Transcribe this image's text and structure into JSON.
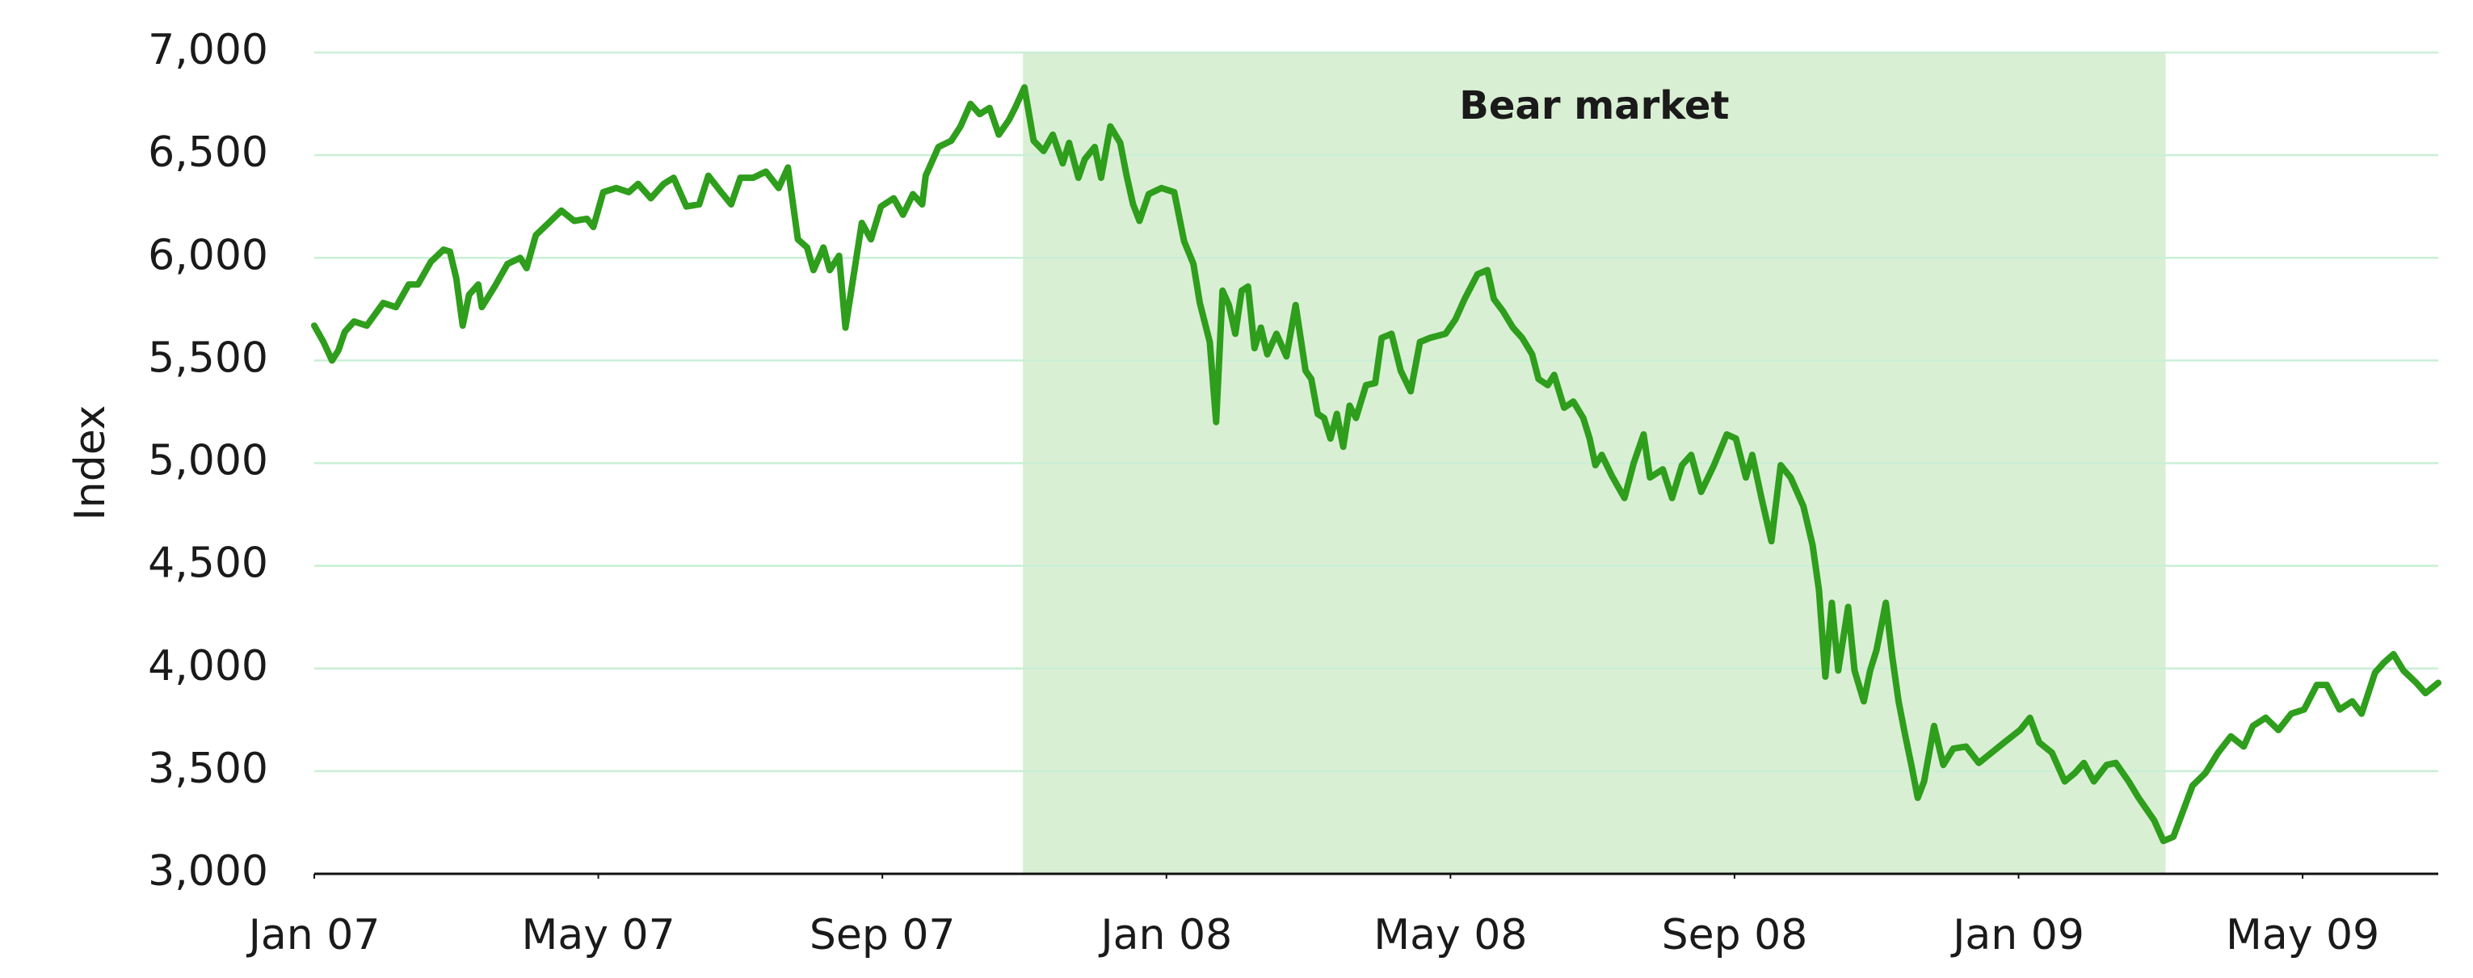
{
  "chart_data": {
    "type": "line",
    "y_label": "Index",
    "xlim": [
      0,
      29.91
    ],
    "xticks": [
      {
        "value": 0,
        "label": "Jan 07"
      },
      {
        "value": 4,
        "label": "May 07"
      },
      {
        "value": 8,
        "label": "Sep 07"
      },
      {
        "value": 12,
        "label": "Jan 08"
      },
      {
        "value": 16,
        "label": "May 08"
      },
      {
        "value": 20,
        "label": "Sep 08"
      },
      {
        "value": 24,
        "label": "Jan 09"
      },
      {
        "value": 28,
        "label": "May 09"
      }
    ],
    "ylim": [
      3000,
      7000
    ],
    "yticks": [
      {
        "value": 3000,
        "label": "3,000"
      },
      {
        "value": 3500,
        "label": "3,500"
      },
      {
        "value": 4000,
        "label": "4,000"
      },
      {
        "value": 4500,
        "label": "4,500"
      },
      {
        "value": 5000,
        "label": "5,000"
      },
      {
        "value": 5500,
        "label": "5,500"
      },
      {
        "value": 6000,
        "label": "6,000"
      },
      {
        "value": 6500,
        "label": "6,500"
      },
      {
        "value": 7000,
        "label": "7,000"
      }
    ],
    "grid": true,
    "grid_color": "#c9efd6",
    "shaded_regions": [
      {
        "start": 9.98,
        "end": 26.07,
        "label": "Bear market",
        "color": "#d9efd3"
      }
    ],
    "x": [
      0,
      0.13,
      0.25,
      0.34,
      0.43,
      0.56,
      0.74,
      0.97,
      1.15,
      1.33,
      1.46,
      1.64,
      1.82,
      1.91,
      2.0,
      2.09,
      2.18,
      2.31,
      2.36,
      2.54,
      2.72,
      2.9,
      2.99,
      3.12,
      3.3,
      3.48,
      3.66,
      3.84,
      3.93,
      4.07,
      4.25,
      4.43,
      4.56,
      4.74,
      4.92,
      5.06,
      5.24,
      5.42,
      5.55,
      5.73,
      5.87,
      6.0,
      6.18,
      6.36,
      6.54,
      6.67,
      6.81,
      6.94,
      7.03,
      7.17,
      7.26,
      7.39,
      7.48,
      7.62,
      7.71,
      7.84,
      7.98,
      8.16,
      8.29,
      8.43,
      8.56,
      8.61,
      8.79,
      8.97,
      9.1,
      9.24,
      9.37,
      9.51,
      9.64,
      9.78,
      9.87,
      10.0,
      10.13,
      10.27,
      10.4,
      10.54,
      10.63,
      10.76,
      10.85,
      10.99,
      11.08,
      11.21,
      11.35,
      11.44,
      11.53,
      11.62,
      11.75,
      11.93,
      12.11,
      12.25,
      12.38,
      12.47,
      12.61,
      12.7,
      12.79,
      12.88,
      12.97,
      13.06,
      13.15,
      13.24,
      13.33,
      13.42,
      13.55,
      13.69,
      13.82,
      13.96,
      14.04,
      14.13,
      14.22,
      14.31,
      14.4,
      14.49,
      14.58,
      14.67,
      14.81,
      14.94,
      15.03,
      15.17,
      15.3,
      15.44,
      15.57,
      15.71,
      15.93,
      16.07,
      16.2,
      16.38,
      16.52,
      16.61,
      16.74,
      16.88,
      17.01,
      17.15,
      17.24,
      17.37,
      17.46,
      17.6,
      17.73,
      17.87,
      17.96,
      18.04,
      18.13,
      18.27,
      18.45,
      18.58,
      18.72,
      18.81,
      18.99,
      19.12,
      19.26,
      19.39,
      19.53,
      19.71,
      19.89,
      20.02,
      20.16,
      20.25,
      20.38,
      20.52,
      20.65,
      20.79,
      20.97,
      21.1,
      21.19,
      21.28,
      21.37,
      21.46,
      21.6,
      21.69,
      21.82,
      21.91,
      22.0,
      22.13,
      22.22,
      22.31,
      22.4,
      22.49,
      22.58,
      22.67,
      22.81,
      22.94,
      23.08,
      23.26,
      23.44,
      23.62,
      23.8,
      24.02,
      24.16,
      24.29,
      24.47,
      24.65,
      24.79,
      24.92,
      25.06,
      25.24,
      25.37,
      25.55,
      25.69,
      25.91,
      26.04,
      26.18,
      26.31,
      26.45,
      26.63,
      26.81,
      26.99,
      27.17,
      27.3,
      27.48,
      27.66,
      27.84,
      28.02,
      28.2,
      28.34,
      28.52,
      28.7,
      28.83,
      29.02,
      29.15,
      29.28,
      29.42,
      29.6,
      29.73,
      29.91
    ],
    "series": [
      {
        "color": "#2e9e1c",
        "values": [
          5670,
          5590,
          5500,
          5550,
          5640,
          5690,
          5670,
          5780,
          5760,
          5870,
          5870,
          5980,
          6040,
          6030,
          5900,
          5670,
          5820,
          5870,
          5760,
          5860,
          5970,
          6000,
          5950,
          6110,
          6170,
          6230,
          6180,
          6190,
          6150,
          6320,
          6340,
          6320,
          6360,
          6290,
          6360,
          6390,
          6250,
          6260,
          6400,
          6320,
          6260,
          6390,
          6390,
          6420,
          6340,
          6440,
          6090,
          6050,
          5940,
          6050,
          5940,
          6010,
          5660,
          5970,
          6170,
          6090,
          6250,
          6290,
          6210,
          6310,
          6260,
          6400,
          6540,
          6570,
          6640,
          6750,
          6700,
          6730,
          6600,
          6670,
          6730,
          6830,
          6570,
          6520,
          6600,
          6460,
          6560,
          6390,
          6480,
          6540,
          6390,
          6640,
          6560,
          6400,
          6260,
          6180,
          6310,
          6340,
          6320,
          6080,
          5970,
          5780,
          5590,
          5200,
          5840,
          5770,
          5630,
          5840,
          5860,
          5560,
          5660,
          5530,
          5630,
          5520,
          5770,
          5450,
          5410,
          5240,
          5220,
          5120,
          5240,
          5080,
          5280,
          5220,
          5380,
          5390,
          5610,
          5630,
          5450,
          5350,
          5590,
          5610,
          5630,
          5700,
          5800,
          5920,
          5940,
          5800,
          5740,
          5660,
          5610,
          5530,
          5410,
          5380,
          5430,
          5270,
          5300,
          5220,
          5120,
          4990,
          5040,
          4940,
          4830,
          5000,
          5140,
          4930,
          4970,
          4830,
          4990,
          5040,
          4860,
          4990,
          5140,
          5120,
          4930,
          5040,
          4830,
          4620,
          4990,
          4930,
          4790,
          4600,
          4380,
          3960,
          4320,
          3990,
          4300,
          3990,
          3840,
          3990,
          4090,
          4320,
          4060,
          3840,
          3680,
          3530,
          3370,
          3450,
          3720,
          3530,
          3610,
          3620,
          3540,
          3590,
          3640,
          3700,
          3760,
          3640,
          3590,
          3450,
          3490,
          3540,
          3450,
          3530,
          3540,
          3450,
          3370,
          3260,
          3160,
          3180,
          3300,
          3430,
          3490,
          3590,
          3670,
          3620,
          3720,
          3760,
          3700,
          3780,
          3800,
          3920,
          3920,
          3800,
          3840,
          3780,
          3980,
          4030,
          4070,
          3990,
          3930,
          3880,
          3930
        ]
      }
    ]
  }
}
